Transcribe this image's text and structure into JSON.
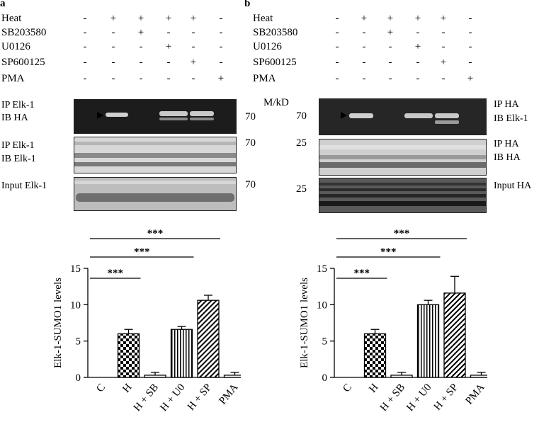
{
  "panels": [
    {
      "label": "a",
      "conditions": [
        {
          "name": "Heat",
          "signs": [
            "-",
            "+",
            "+",
            "+",
            "+",
            "-"
          ]
        },
        {
          "name": "SB203580",
          "signs": [
            "-",
            "-",
            "+",
            "-",
            "-",
            "-"
          ]
        },
        {
          "name": "U0126",
          "signs": [
            "-",
            "-",
            "-",
            "+",
            "-",
            "-"
          ]
        },
        {
          "name": "SP600125",
          "signs": [
            "-",
            "-",
            "-",
            "-",
            "+",
            "-"
          ]
        },
        {
          "name": "PMA",
          "signs": [
            "-",
            "-",
            "-",
            "-",
            "-",
            "+"
          ]
        }
      ],
      "blots": [
        {
          "labels": [
            "IP Elk-1",
            "IB HA"
          ],
          "marker": "70"
        },
        {
          "labels": [
            "IP Elk-1",
            "IB Elk-1"
          ],
          "marker": "70"
        },
        {
          "labels": [
            "Input Elk-1"
          ],
          "marker": "70"
        }
      ],
      "chart_data": {
        "type": "bar",
        "ylabel": "Elk-1-SUMO1 levels",
        "ylim": [
          0,
          15
        ],
        "yticks": [
          0,
          5,
          10,
          15
        ],
        "categories": [
          "C",
          "H",
          "H + SB",
          "H + U0",
          "H + SP",
          "PMA"
        ],
        "values": [
          0,
          6.0,
          0.3,
          6.6,
          10.6,
          0.3
        ],
        "errors": [
          0,
          0.6,
          0.4,
          0.4,
          0.7,
          0.4
        ],
        "patterns": [
          "none",
          "checker",
          "none",
          "vstripe",
          "diag",
          "none"
        ],
        "significance": [
          {
            "from": "C",
            "to": "H",
            "label": "***"
          },
          {
            "from": "C",
            "to": "H + U0",
            "label": "***"
          },
          {
            "from": "C",
            "to": "H + SP",
            "label": "***"
          }
        ]
      }
    },
    {
      "label": "b",
      "mw_label": "M/kD",
      "conditions": [
        {
          "name": "Heat",
          "signs": [
            "-",
            "+",
            "+",
            "+",
            "+",
            "-"
          ]
        },
        {
          "name": "SB203580",
          "signs": [
            "-",
            "-",
            "+",
            "-",
            "-",
            "-"
          ]
        },
        {
          "name": "U0126",
          "signs": [
            "-",
            "-",
            "-",
            "+",
            "-",
            "-"
          ]
        },
        {
          "name": "SP600125",
          "signs": [
            "-",
            "-",
            "-",
            "-",
            "+",
            "-"
          ]
        },
        {
          "name": "PMA",
          "signs": [
            "-",
            "-",
            "-",
            "-",
            "-",
            "+"
          ]
        }
      ],
      "blots": [
        {
          "labels": [
            "IP HA",
            "IB Elk-1"
          ],
          "marker": "70"
        },
        {
          "labels": [
            "IP HA",
            "IB HA"
          ],
          "marker": "25"
        },
        {
          "labels": [
            "Input HA"
          ],
          "marker": "25"
        }
      ],
      "chart_data": {
        "type": "bar",
        "ylabel": "Elk-1-SUMO1 levels",
        "ylim": [
          0,
          15
        ],
        "yticks": [
          0,
          5,
          10,
          15
        ],
        "categories": [
          "C",
          "H",
          "H + SB",
          "H + U0",
          "H + SP",
          "PMA"
        ],
        "values": [
          0,
          6.0,
          0.3,
          10.0,
          11.6,
          0.3
        ],
        "errors": [
          0,
          0.6,
          0.4,
          0.6,
          2.3,
          0.4
        ],
        "patterns": [
          "none",
          "checker",
          "none",
          "vstripe",
          "diag",
          "none"
        ],
        "significance": [
          {
            "from": "C",
            "to": "H",
            "label": "***"
          },
          {
            "from": "C",
            "to": "H + U0",
            "label": "***"
          },
          {
            "from": "C",
            "to": "H + SP",
            "label": "***"
          }
        ]
      }
    }
  ]
}
